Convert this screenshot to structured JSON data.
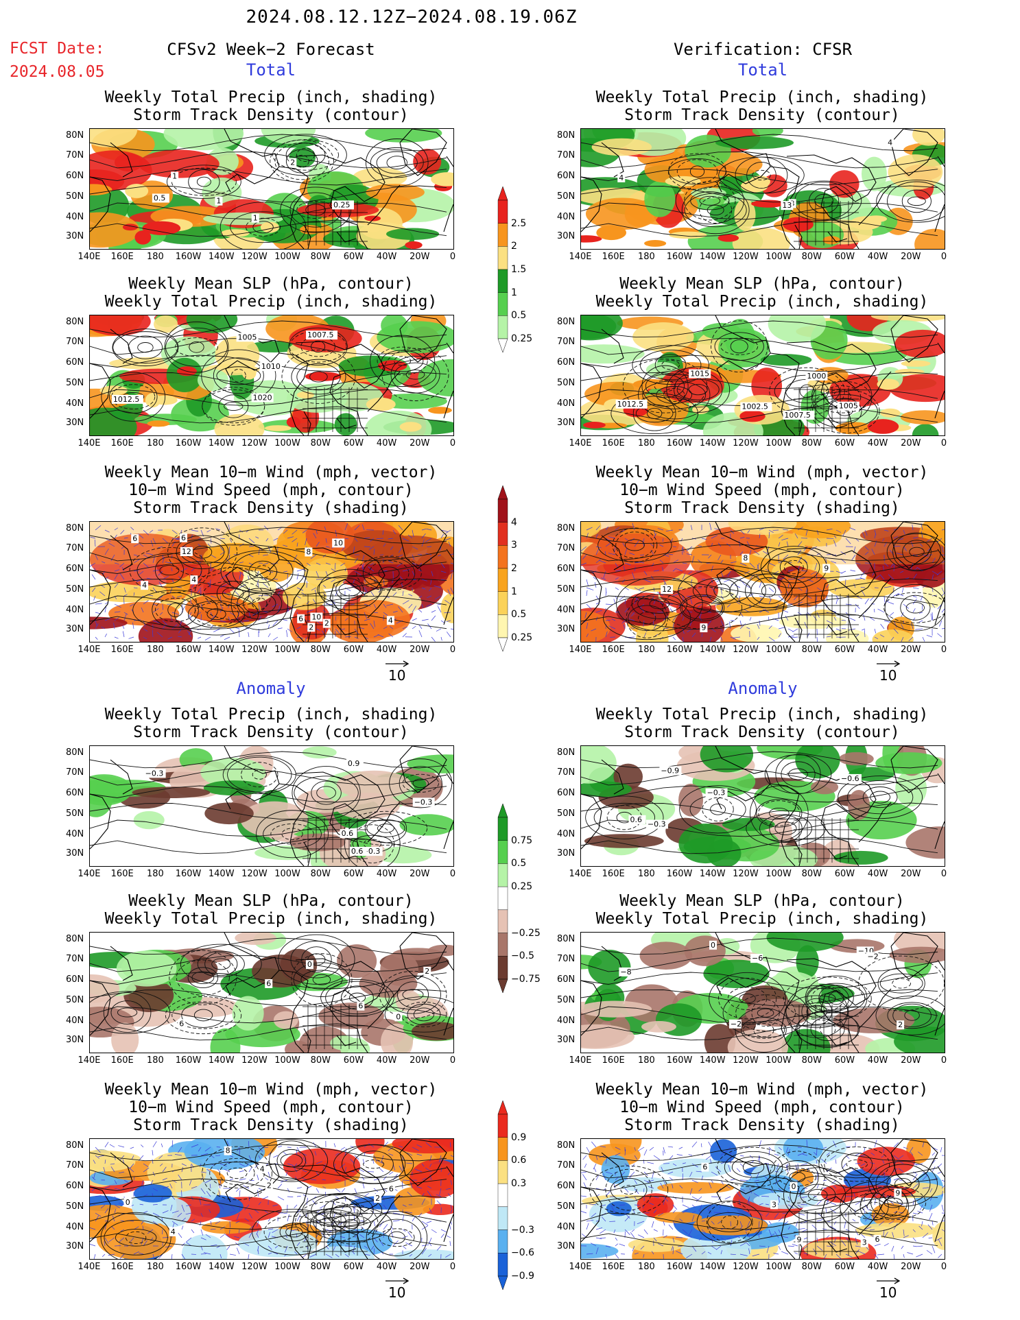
{
  "header": {
    "title": "2024.08.12.12Z−2024.08.19.06Z",
    "fcst_label": "FCST Date:",
    "fcst_date": "2024.08.05",
    "left_header": "CFSv2 Week−2 Forecast",
    "right_header": "Verification: CFSR"
  },
  "sections": {
    "total": "Total",
    "anomaly": "Anomaly"
  },
  "panel_titles": {
    "precip_storm": [
      "Weekly Total Precip (inch, shading)",
      "Storm Track Density (contour)"
    ],
    "slp_precip": [
      "Weekly Mean SLP (hPa, contour)",
      "Weekly Total Precip (inch, shading)"
    ],
    "wind_storm": [
      "Weekly Mean 10−m Wind (mph, vector)",
      "10−m Wind Speed (mph, contour)",
      "Storm Track Density (shading)"
    ]
  },
  "axes": {
    "lat_labels": [
      "80N",
      "70N",
      "60N",
      "50N",
      "40N",
      "30N"
    ],
    "lon_labels": [
      "140E",
      "160E",
      "180",
      "160W",
      "140W",
      "120W",
      "100W",
      "80W",
      "60W",
      "40W",
      "20W",
      "0"
    ]
  },
  "vector_reference": "10",
  "colorbars": {
    "total_precip": {
      "labels": [
        "2.5",
        "2",
        "1.5",
        "1",
        "0.5",
        "0.25"
      ],
      "colors": [
        "#e8231e",
        "#f7951e",
        "#fbe082",
        "#1e9a27",
        "#56cf4f",
        "#b5f3a7"
      ]
    },
    "total_storm": {
      "labels": [
        "4",
        "3",
        "2",
        "1",
        "0.5",
        "0.25"
      ],
      "colors": [
        "#a0121a",
        "#e1301f",
        "#f3731e",
        "#f8a31e",
        "#fbd25a",
        "#fff6b0"
      ]
    },
    "anom_precip": {
      "labels": [
        "0.75",
        "0.5",
        "0.25",
        "−0.25",
        "−0.5",
        "−0.75"
      ],
      "colors": [
        "#1e9a27",
        "#56cf4f",
        "#b5f3a7",
        "#e6c2b4",
        "#a8766a",
        "#6b3b30"
      ]
    },
    "anom_storm": {
      "labels": [
        "0.9",
        "0.6",
        "0.3",
        "−0.3",
        "−0.6",
        "−0.9"
      ],
      "colors": [
        "#ea2a1e",
        "#f7951e",
        "#fbe082",
        "#bfe8f6",
        "#5ab0ef",
        "#1a62d8"
      ]
    }
  },
  "contour_labels": {
    "L1": [
      "2",
      "0.25",
      "1",
      "0.5",
      "1",
      "1"
    ],
    "R1": [
      "3",
      "4",
      "4",
      "13"
    ],
    "L2": [
      "1007.5",
      "1005",
      "1010",
      "1012.5",
      "1020"
    ],
    "R2": [
      "1000",
      "1005",
      "1012.5",
      "1002.5",
      "1007.5",
      "1015"
    ],
    "L3": [
      "2",
      "4",
      "8",
      "4",
      "10",
      "6",
      "2",
      "10",
      "6",
      "4",
      "12",
      "6"
    ],
    "R3": [
      "9",
      "8",
      "12",
      "9"
    ],
    "L4": [
      "0.6",
      "−0.3",
      "0.6",
      "0.9",
      "−0.3",
      "−0.3"
    ],
    "R4": [
      "−0.6",
      "−0.3",
      "−0.3",
      "−0.9",
      "0.6"
    ],
    "L5": [
      "6",
      "6",
      "0",
      "0",
      "6",
      "2"
    ],
    "R5": [
      "−10",
      "−2",
      "−6",
      "−8",
      "0",
      "2",
      "−2"
    ],
    "L6": [
      "2",
      "4",
      "0",
      "2",
      "4",
      "6",
      "8"
    ],
    "R6": [
      "6",
      "3",
      "9",
      "9",
      "0",
      "3",
      "6"
    ]
  },
  "icons": [
    "vector-reference-arrow-icon"
  ]
}
